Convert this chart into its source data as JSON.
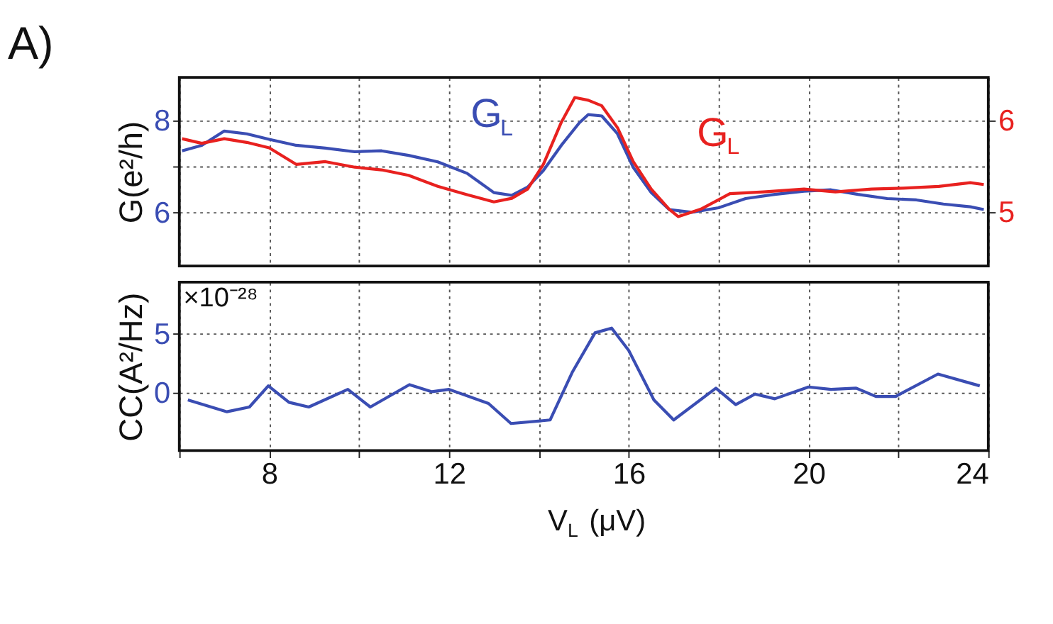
{
  "chart_data": [
    {
      "type": "line",
      "title": "A)",
      "ylabel": "G(e²/h)",
      "xlim": [
        6,
        24
      ],
      "xticks": [
        {
          "value": 6,
          "label": null
        },
        8,
        {
          "value": 10,
          "label": null
        },
        12,
        {
          "value": 14,
          "label": null
        },
        16,
        {
          "value": 18,
          "label": null
        },
        20,
        {
          "value": 22,
          "label": null
        },
        24
      ],
      "ylim": [
        4.83,
        8.94
      ],
      "yticks": [
        6,
        {
          "value": 7,
          "label": null
        },
        8
      ],
      "y2lim": [
        4.41,
        6.47
      ],
      "y2ticks": [
        5,
        6
      ],
      "grid": true,
      "tick_labels": "y",
      "marker": "none",
      "line_style": "solid",
      "series": [
        {
          "name": "G$_{L}$",
          "color": "#3a4db3",
          "x": [
            6.06,
            6.5,
            7.0,
            7.5,
            8.0,
            8.6,
            9.25,
            9.9,
            10.5,
            11.1,
            11.75,
            12.4,
            13.0,
            13.4,
            13.75,
            14.1,
            14.5,
            14.9,
            15.1,
            15.4,
            15.75,
            16.1,
            16.5,
            16.9,
            17.4,
            18.0,
            18.6,
            19.25,
            19.9,
            20.5,
            21.1,
            21.75,
            22.4,
            23.0,
            23.6,
            23.9
          ],
          "values": [
            7.34,
            7.46,
            7.77,
            7.71,
            7.59,
            7.46,
            7.4,
            7.32,
            7.34,
            7.24,
            7.1,
            6.85,
            6.43,
            6.37,
            6.55,
            6.91,
            7.46,
            7.95,
            8.13,
            8.1,
            7.71,
            6.98,
            6.43,
            6.06,
            6.0,
            6.1,
            6.3,
            6.39,
            6.46,
            6.49,
            6.39,
            6.3,
            6.27,
            6.18,
            6.12,
            6.06
          ]
        },
        {
          "name": "G$_{L}$",
          "color": "#e8211f",
          "axis": "y2",
          "x": [
            6.06,
            6.5,
            7.0,
            7.5,
            8.0,
            8.6,
            9.25,
            9.9,
            10.5,
            11.1,
            11.75,
            12.4,
            13.0,
            13.4,
            13.75,
            14.1,
            14.5,
            14.8,
            15.1,
            15.4,
            15.75,
            16.1,
            16.5,
            16.9,
            17.1,
            17.6,
            18.25,
            19.0,
            19.9,
            20.6,
            21.4,
            22.1,
            22.9,
            23.6,
            23.9
          ],
          "values": [
            5.8,
            5.75,
            5.8,
            5.76,
            5.7,
            5.52,
            5.55,
            5.49,
            5.46,
            5.4,
            5.28,
            5.19,
            5.11,
            5.15,
            5.25,
            5.52,
            5.98,
            6.25,
            6.22,
            6.16,
            5.92,
            5.55,
            5.25,
            5.03,
            4.95,
            5.03,
            5.2,
            5.22,
            5.25,
            5.22,
            5.25,
            5.26,
            5.28,
            5.32,
            5.3
          ]
        }
      ]
    },
    {
      "type": "line",
      "ylabel": "CC(A²/Hz)",
      "xlabel": "V$_{L}$ (μV)",
      "annotations": [
        "×10⁻²⁸"
      ],
      "xlim": [
        6,
        24
      ],
      "xticks": [
        {
          "value": 6,
          "label": null
        },
        8,
        {
          "value": 10,
          "label": null
        },
        12,
        {
          "value": 14,
          "label": null
        },
        16,
        {
          "value": 18,
          "label": null
        },
        20,
        {
          "value": 22,
          "label": null
        },
        24
      ],
      "ylim": [
        -4.9,
        9.4
      ],
      "yticks": [
        0,
        5
      ],
      "grid": true,
      "marker": "none",
      "line_style": "solid",
      "series": [
        {
          "color": "#3a4db3",
          "x": [
            6.19,
            7.06,
            7.56,
            7.98,
            8.44,
            8.88,
            9.75,
            10.25,
            11.12,
            11.62,
            12.0,
            12.88,
            13.38,
            14.25,
            14.75,
            15.25,
            15.62,
            16.0,
            16.56,
            17.0,
            17.94,
            18.38,
            18.81,
            19.25,
            20.0,
            20.5,
            21.06,
            21.5,
            21.94,
            22.88,
            23.81
          ],
          "values": [
            -0.6,
            -1.6,
            -1.2,
            0.6,
            -0.8,
            -1.2,
            0.3,
            -1.2,
            0.7,
            0.1,
            0.3,
            -0.9,
            -2.6,
            -2.3,
            1.8,
            5.1,
            5.5,
            3.6,
            -0.6,
            -2.3,
            0.4,
            -1.0,
            -0.1,
            -0.5,
            0.5,
            0.3,
            0.4,
            -0.3,
            -0.3,
            1.6,
            0.6
          ]
        }
      ]
    }
  ]
}
